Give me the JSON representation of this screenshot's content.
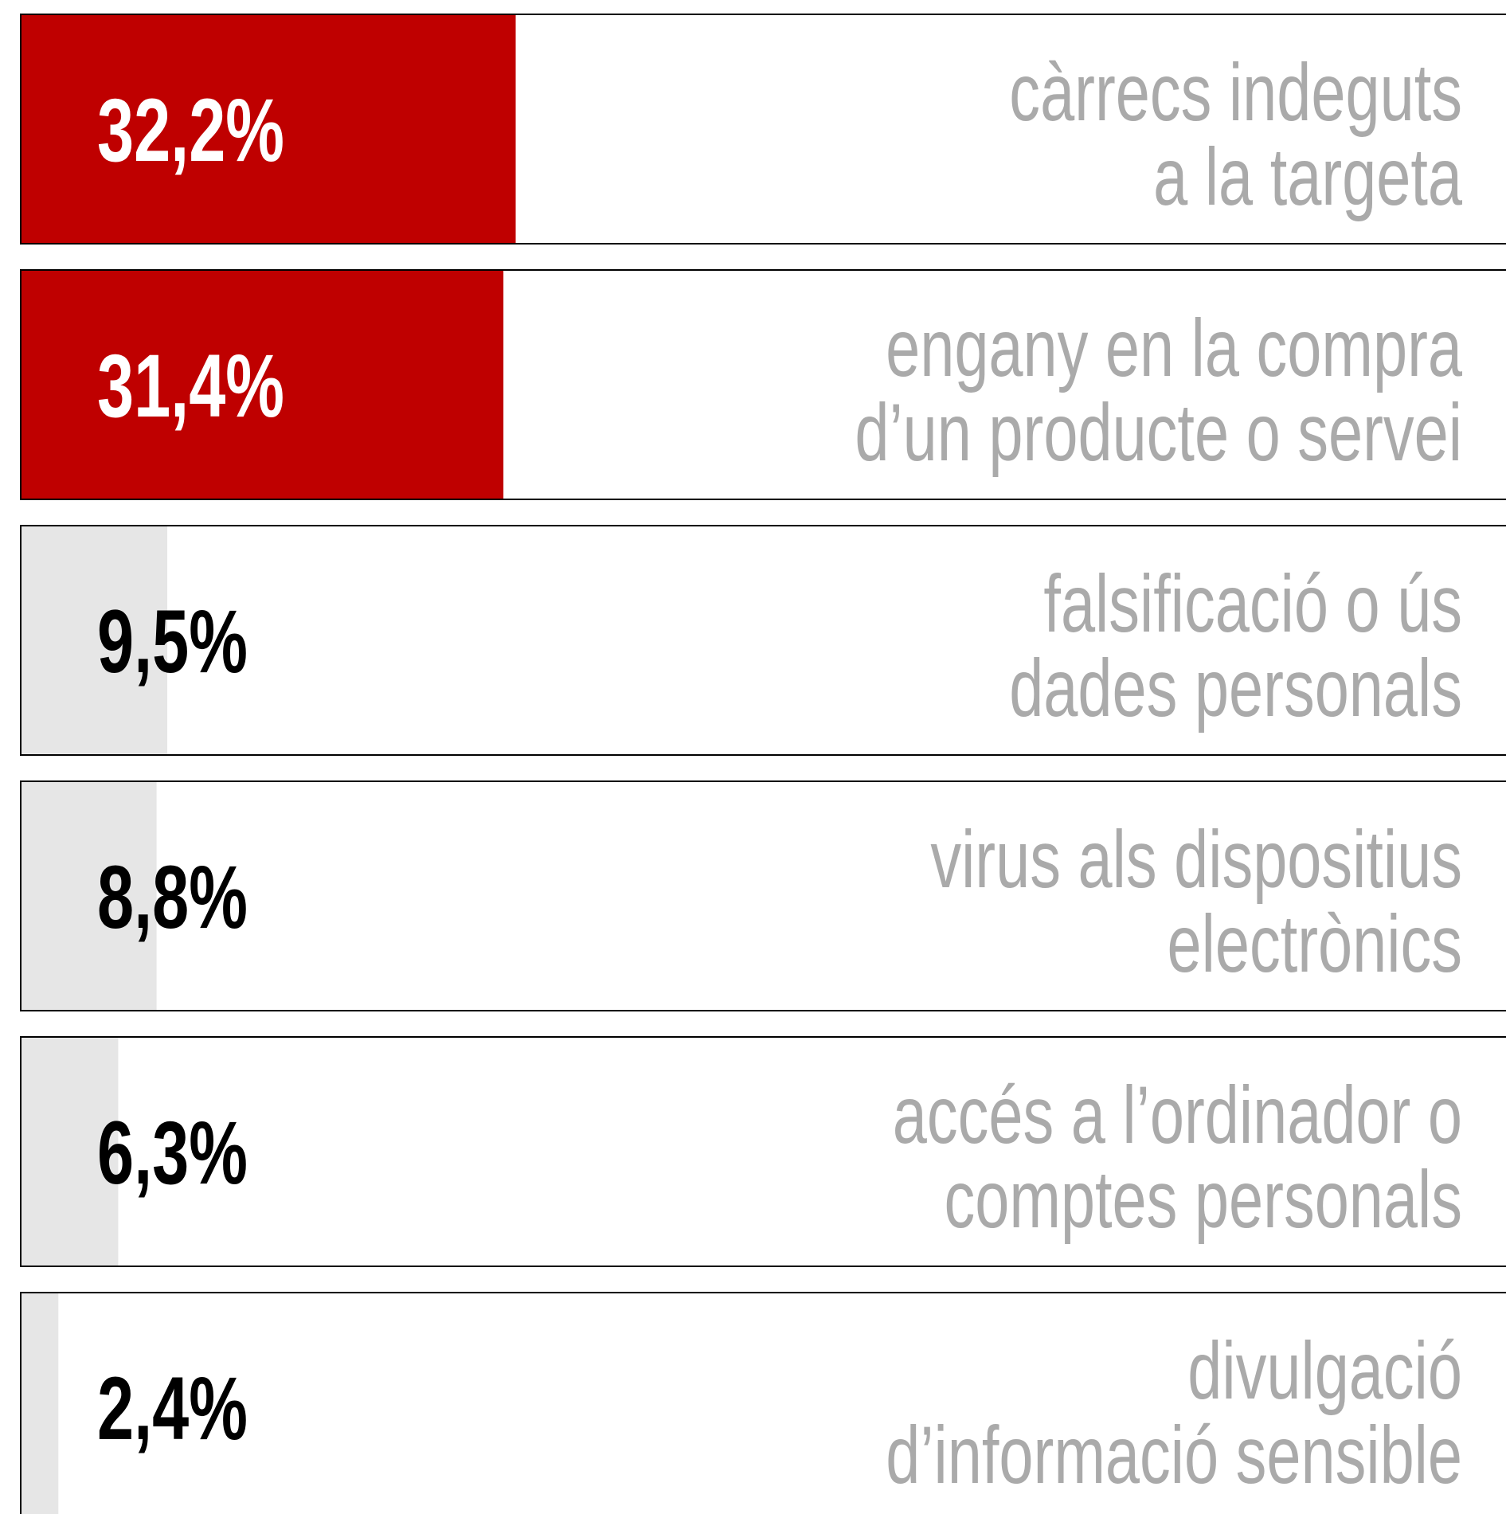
{
  "chart_data": {
    "type": "bar",
    "categories": [
      [
        "càrrecs indeguts",
        "a la targeta"
      ],
      [
        "engany en la compra",
        "d’un producte o servei"
      ],
      [
        "falsificació o ús",
        "dades personals"
      ],
      [
        "virus als dispositius",
        "electrònics"
      ],
      [
        "accés a l’ordinador o",
        "comptes personals"
      ],
      [
        "divulgació",
        "d’informació sensible"
      ]
    ],
    "values": [
      32.2,
      31.4,
      9.5,
      8.8,
      6.3,
      2.4
    ],
    "value_labels": [
      "32,2%",
      "31,4%",
      "9,5%",
      "8,8%",
      "6,3%",
      "2,4%"
    ],
    "colors": [
      "#bf0000",
      "#bf0000",
      "#e6e6e6",
      "#e6e6e6",
      "#e6e6e6",
      "#e6e6e6"
    ],
    "value_label_colors": [
      "#ffffff",
      "#ffffff",
      "#000000",
      "#000000",
      "#000000",
      "#000000"
    ],
    "xlim": [
      0,
      100
    ]
  }
}
